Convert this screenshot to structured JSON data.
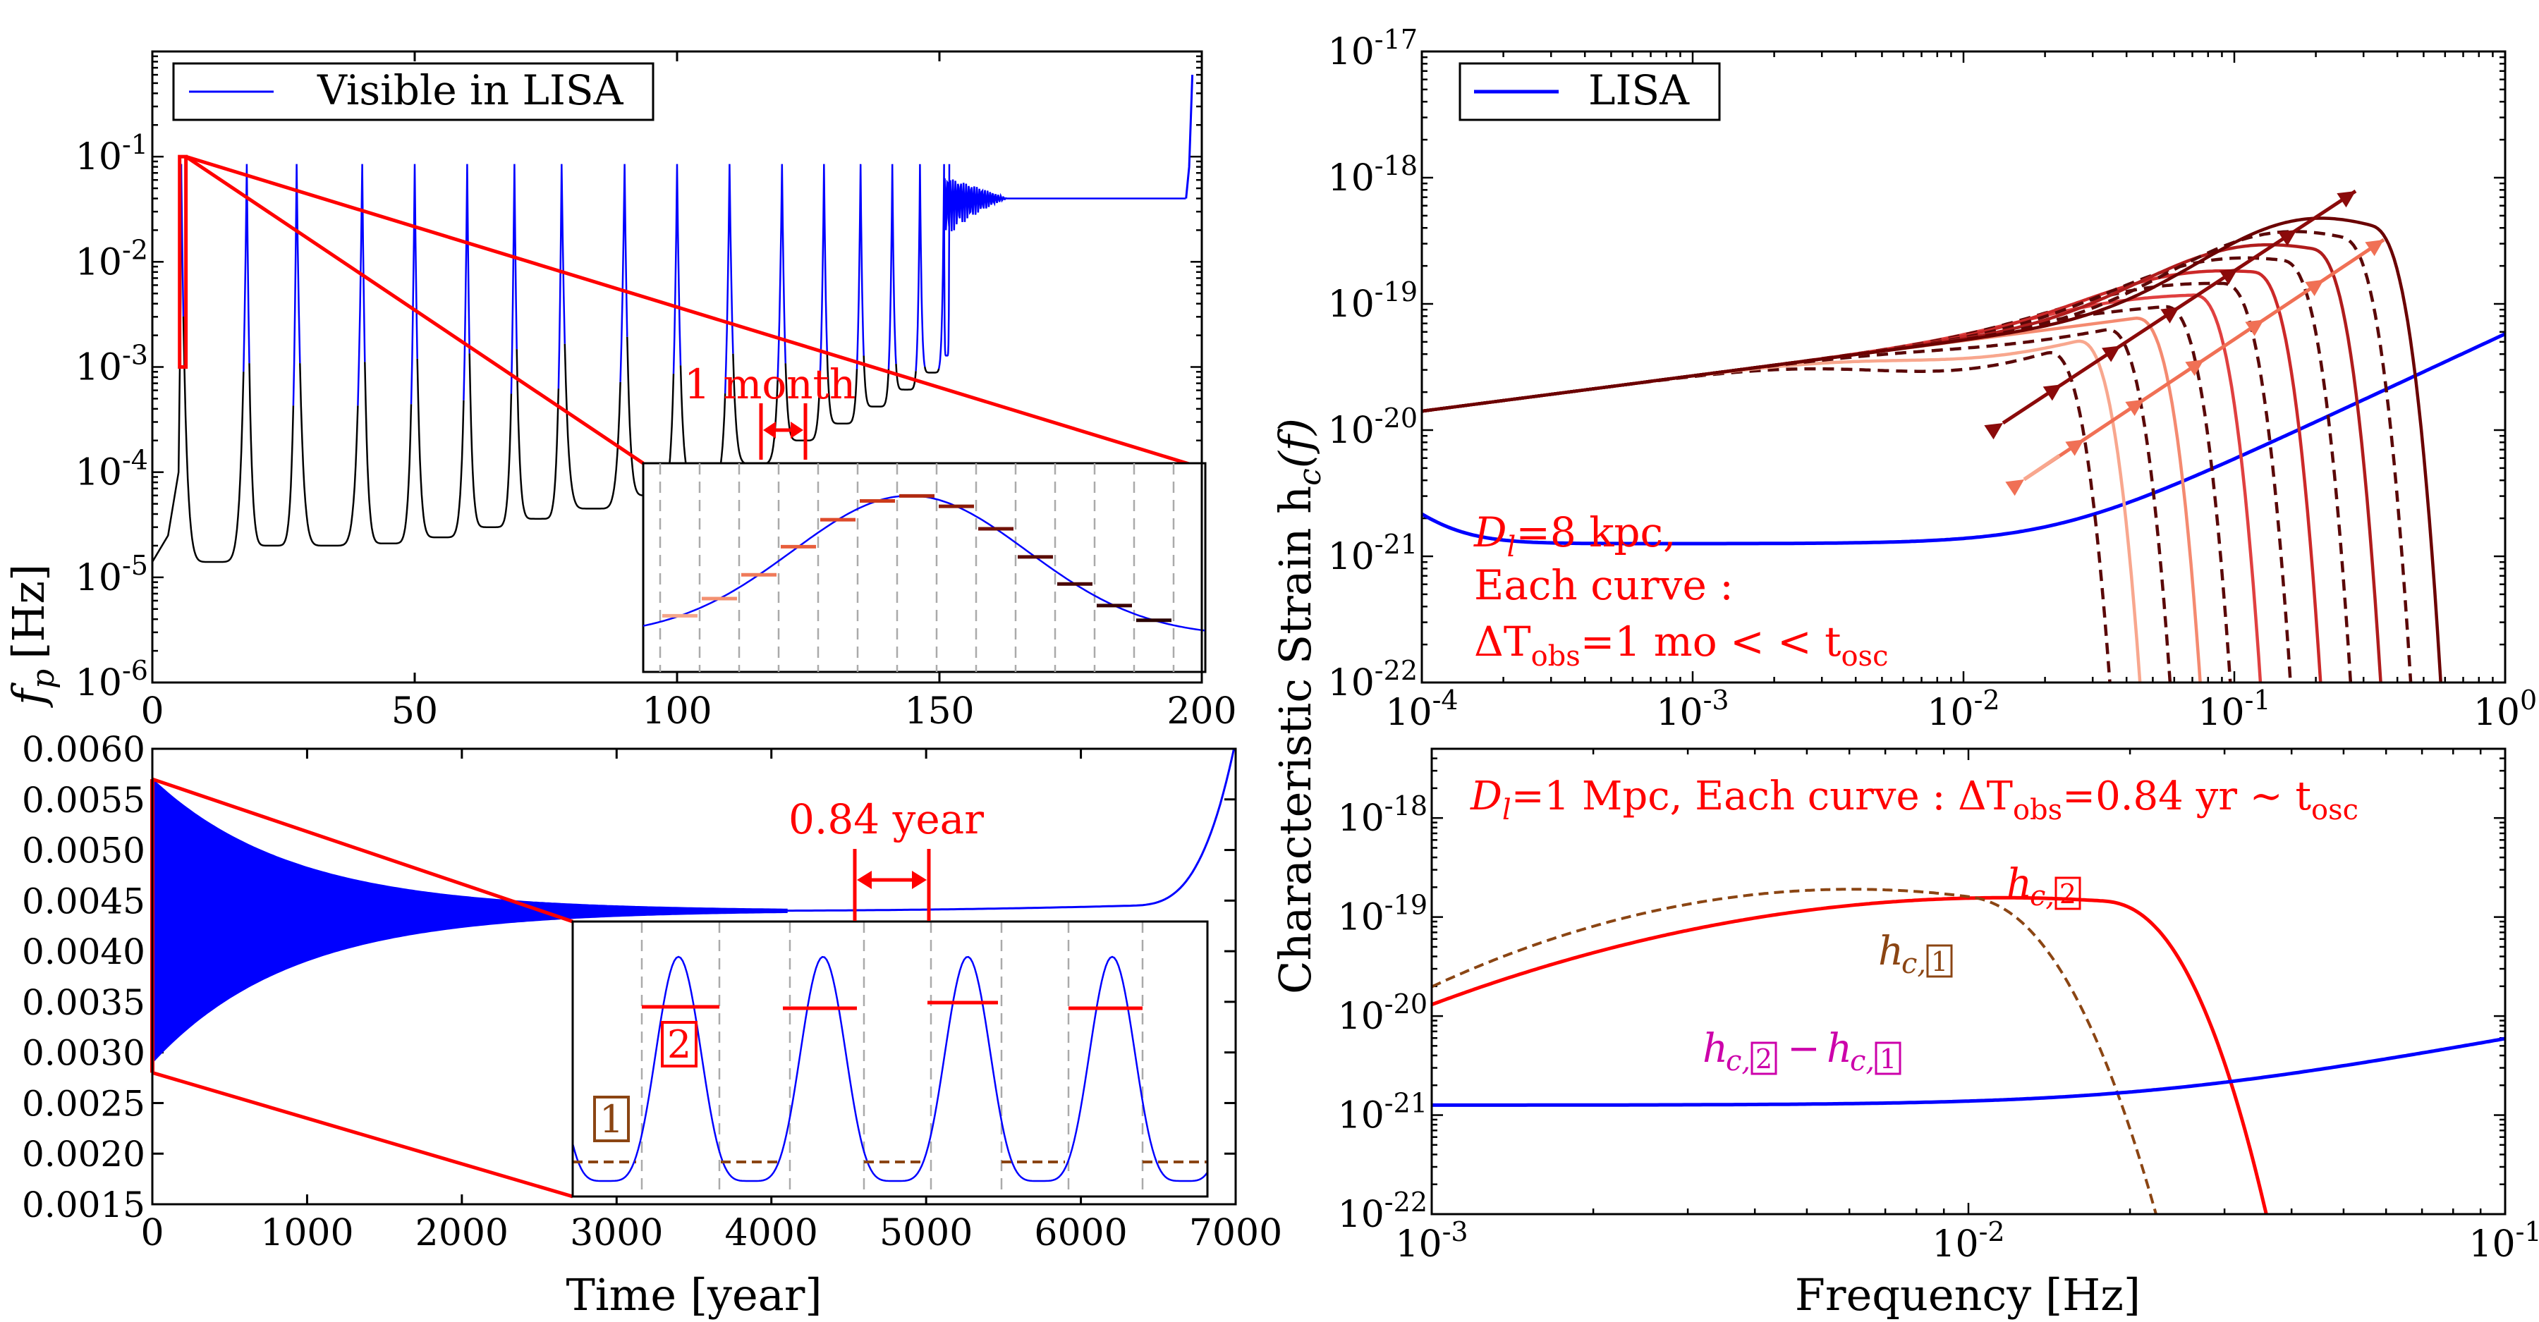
{
  "figure": {
    "y_label_left": "f",
    "y_label_left_sub": "p",
    "y_label_left_unit": "[Hz]",
    "x_label_left": "Time [year]",
    "y_label_right": "Characteristic Strain h",
    "y_label_right_sub": "c",
    "y_label_right_arg": "(f)",
    "x_label_right": "Frequency [Hz]"
  },
  "chart_data": [
    {
      "id": "top-left",
      "type": "line",
      "legend": "Visible in LISA",
      "legend_position": "top-left",
      "xlim": [
        0,
        200
      ],
      "ylim": [
        1e-06,
        1
      ],
      "yscale": "log",
      "xticks": [
        "0",
        "50",
        "100",
        "150",
        "200"
      ],
      "yticks_exp": [
        "-6",
        "-5",
        "-4",
        "-3",
        "-2",
        "-1"
      ],
      "annotation": "1 month",
      "peak_times": [
        5.5,
        18,
        27.5,
        40,
        50,
        60,
        69,
        78,
        90,
        100,
        110,
        120
      ],
      "min_freq": [
        1.4e-05,
        2e-05,
        2e-05,
        2.1e-05,
        2.4e-05,
        3e-05,
        3.6e-05,
        4.5e-05,
        6e-05,
        8e-05,
        0.00012,
        0.0002
      ],
      "series": [
        {
          "name": "Visible in LISA",
          "color": "#0000ff",
          "plateau_hz": 0.04,
          "merger_time": 197
        },
        {
          "color": "#000000"
        }
      ]
    },
    {
      "id": "bottom-left",
      "type": "line",
      "xlim": [
        0,
        7000
      ],
      "ylim": [
        0.0015,
        0.006
      ],
      "xticks": [
        "0",
        "1000",
        "2000",
        "3000",
        "4000",
        "5000",
        "6000",
        "7000"
      ],
      "yticks": [
        "0.0015",
        "0.0020",
        "0.0025",
        "0.0030",
        "0.0035",
        "0.0040",
        "0.0045",
        "0.0050",
        "0.0055",
        "0.0060"
      ],
      "annotation": "0.84 year",
      "box_labels": [
        "1",
        "2"
      ],
      "envelope_upper_start": 0.0057,
      "envelope_lower_start": 0.0029,
      "center_line_min": 0.0044
    },
    {
      "id": "top-right",
      "type": "line",
      "legend": "LISA",
      "legend_position": "top-left",
      "xlim": [
        0.0001,
        1
      ],
      "ylim": [
        1e-22,
        1e-17
      ],
      "xscale": "log",
      "yscale": "log",
      "xticks_exp": [
        "-4",
        "-3",
        "-2",
        "-1",
        "0"
      ],
      "yticks_exp": [
        "-22",
        "-21",
        "-20",
        "-19",
        "-18",
        "-17"
      ],
      "text_lines": [
        "D",
        "=8 kpc,",
        "Each curve :",
        "ΔT",
        "=1 mo  < < t"
      ],
      "text_subs": [
        "l",
        "obs",
        "osc"
      ],
      "num_source_curves": 12,
      "colors": [
        "#6b0000",
        "#8b1010",
        "#b01c1c",
        "#cc2929",
        "#e04040",
        "#ee6050",
        "#f48a70",
        "#f8a78e"
      ]
    },
    {
      "id": "bottom-right",
      "type": "line",
      "xlim": [
        0.001,
        0.1
      ],
      "ylim": [
        1e-22,
        5e-18
      ],
      "xscale": "log",
      "yscale": "log",
      "xticks_exp": [
        "-3",
        "-2",
        "-1"
      ],
      "yticks_exp": [
        "-22",
        "-21",
        "-20",
        "-19",
        "-18"
      ],
      "title_parts": [
        "D",
        "l",
        "=1 Mpc, Each curve :  ΔT",
        "obs",
        "=0.84 yr  ∼ t",
        "osc"
      ],
      "curve_labels": {
        "h2": "h",
        "h2_sub": "c,",
        "h2_box": "2",
        "h1": "h",
        "h1_sub": "c,",
        "h1_box": "1",
        "diff": "h",
        "diff_sub": "c,",
        "diff_box1": "2",
        "diff_minus": "−",
        "diff_box2": "1"
      },
      "series": [
        {
          "color": "#ff0000"
        },
        {
          "color": "#8b4513"
        },
        {
          "color": "#cc00aa"
        },
        {
          "color": "#0000ff"
        }
      ]
    }
  ]
}
